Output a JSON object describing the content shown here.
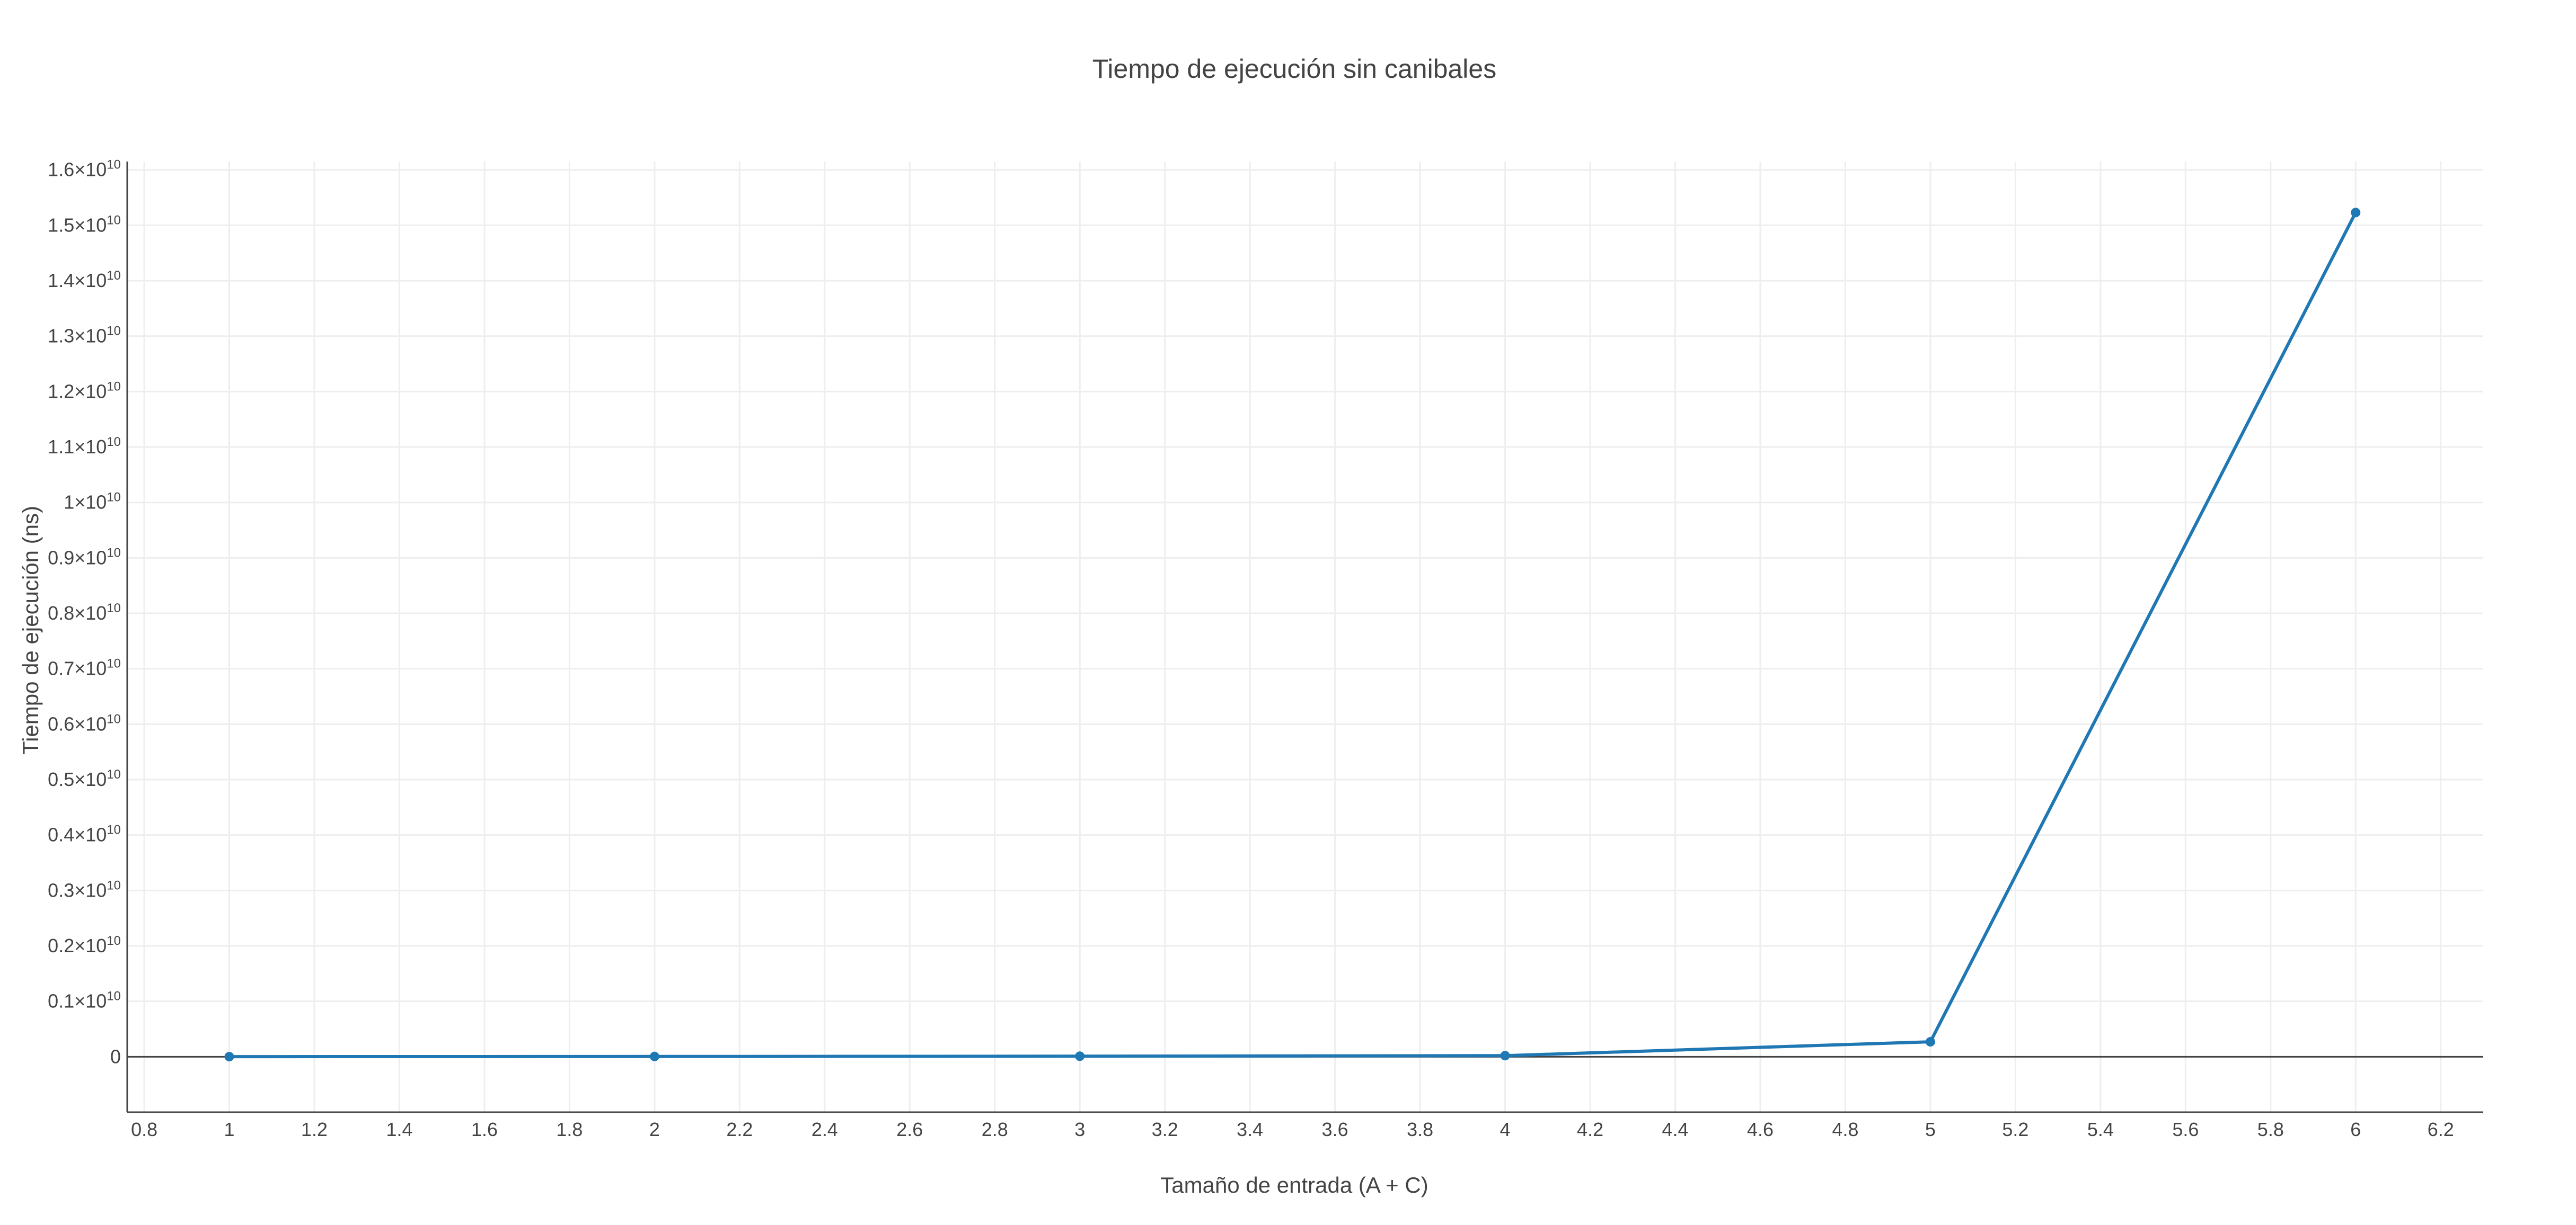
{
  "chart_data": {
    "type": "line",
    "title": "Tiempo de ejecución sin canibales",
    "xlabel": "Tamaño de entrada (A + C)",
    "ylabel": "Tiempo de ejecución (ns)",
    "xlim": [
      0.76,
      6.3
    ],
    "ylim": [
      -1000000000,
      16150000000
    ],
    "x_ticks": [
      "0.8",
      "1",
      "1.2",
      "1.4",
      "1.6",
      "1.8",
      "2",
      "2.2",
      "2.4",
      "2.6",
      "2.8",
      "3",
      "3.2",
      "3.4",
      "3.6",
      "3.8",
      "4",
      "4.2",
      "4.4",
      "4.6",
      "4.8",
      "5",
      "5.2",
      "5.4",
      "5.6",
      "5.8",
      "6",
      "6.2"
    ],
    "y_ticks": [
      {
        "value": 0,
        "mantissa": "0",
        "exp": ""
      },
      {
        "value": 1000000000,
        "mantissa": "0.1×10",
        "exp": "10"
      },
      {
        "value": 2000000000,
        "mantissa": "0.2×10",
        "exp": "10"
      },
      {
        "value": 3000000000,
        "mantissa": "0.3×10",
        "exp": "10"
      },
      {
        "value": 4000000000,
        "mantissa": "0.4×10",
        "exp": "10"
      },
      {
        "value": 5000000000,
        "mantissa": "0.5×10",
        "exp": "10"
      },
      {
        "value": 6000000000,
        "mantissa": "0.6×10",
        "exp": "10"
      },
      {
        "value": 7000000000,
        "mantissa": "0.7×10",
        "exp": "10"
      },
      {
        "value": 8000000000,
        "mantissa": "0.8×10",
        "exp": "10"
      },
      {
        "value": 9000000000,
        "mantissa": "0.9×10",
        "exp": "10"
      },
      {
        "value": 10000000000,
        "mantissa": "1×10",
        "exp": "10"
      },
      {
        "value": 11000000000,
        "mantissa": "1.1×10",
        "exp": "10"
      },
      {
        "value": 12000000000,
        "mantissa": "1.2×10",
        "exp": "10"
      },
      {
        "value": 13000000000,
        "mantissa": "1.3×10",
        "exp": "10"
      },
      {
        "value": 14000000000,
        "mantissa": "1.4×10",
        "exp": "10"
      },
      {
        "value": 15000000000,
        "mantissa": "1.5×10",
        "exp": "10"
      },
      {
        "value": 16000000000,
        "mantissa": "1.6×10",
        "exp": "10"
      }
    ],
    "grid": true,
    "legend": "none",
    "series": [
      {
        "color": "#1f77b4",
        "x": [
          1,
          2,
          3,
          4,
          5,
          6
        ],
        "y": [
          2000000,
          5000000,
          10000000,
          20000000,
          270000000,
          15230000000
        ]
      }
    ]
  }
}
